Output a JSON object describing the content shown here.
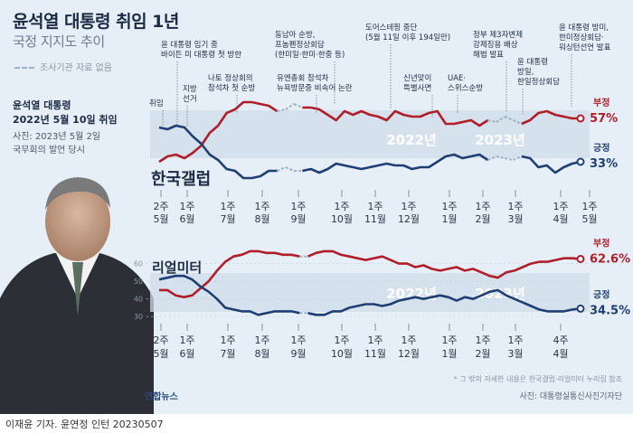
{
  "title": "윤석열 대통령 취임 1년",
  "subtitle": "국정 지지도 추이",
  "legend_dashed": "조사기관 자료 없음",
  "info": {
    "name": "윤석열 대통령",
    "date": "2022년 5월 10일 취임",
    "photo_line1": "사진: 2023년 5월 2일",
    "photo_line2": "국무회의 발언 당시"
  },
  "footnote": "* 그 밖의 자세한 내용은 한국갤럽·리얼미터 누리집 참조",
  "photo_credit": "사진: 대통령실통신사진기자단",
  "agency": "연합뉴스",
  "credit_line": "이재윤 기자. 윤연정 인턴  20230507",
  "colors": {
    "negative": "#b01e2a",
    "positive": "#1f3f74",
    "gap": "#9fb1c4",
    "band": "#cfdeeb"
  },
  "chart_data": [
    {
      "type": "line",
      "source": "한국갤럽",
      "year_labels": [
        "2022년",
        "2023년"
      ],
      "x_ticks": [
        {
          "week": "2주",
          "month": "5월"
        },
        {
          "week": "1주",
          "month": "6월"
        },
        {
          "week": "1주",
          "month": "7월"
        },
        {
          "week": "1주",
          "month": "8월"
        },
        {
          "week": "1주",
          "month": "9월"
        },
        {
          "week": "1주",
          "month": "10월"
        },
        {
          "week": "1주",
          "month": "11월"
        },
        {
          "week": "1주",
          "month": "12월"
        },
        {
          "week": "1주",
          "month": "1월"
        },
        {
          "week": "1주",
          "month": "2월"
        },
        {
          "week": "1주",
          "month": "3월"
        },
        {
          "week": "1주",
          "month": "4월"
        },
        {
          "week": "1주",
          "month": "5월"
        }
      ],
      "series": [
        {
          "name": "부정",
          "final_label": "57%",
          "values": [
            33,
            36,
            37,
            35,
            38,
            42,
            49,
            53,
            60,
            62,
            66,
            66,
            65,
            64,
            61,
            62,
            65,
            63,
            63,
            62,
            59,
            56,
            61,
            59,
            61,
            59,
            58,
            56,
            61,
            59,
            58,
            58,
            60,
            61,
            54,
            54,
            55,
            56,
            53,
            56,
            55,
            58,
            56,
            54,
            56,
            60,
            61,
            59,
            58,
            57,
            57
          ],
          "gaps": [
            [
              14,
              17
            ],
            [
              39,
              43
            ]
          ]
        },
        {
          "name": "긍정",
          "final_label": "33%",
          "values": [
            52,
            51,
            53,
            52,
            47,
            43,
            37,
            34,
            29,
            28,
            24,
            24,
            25,
            28,
            28,
            30,
            28,
            28,
            29,
            27,
            29,
            32,
            31,
            30,
            29,
            30,
            31,
            32,
            31,
            31,
            29,
            30,
            30,
            33,
            36,
            37,
            35,
            36,
            37,
            34,
            36,
            35,
            34,
            36,
            35,
            30,
            31,
            27,
            30,
            32,
            33
          ],
          "gaps": [
            [
              14,
              17
            ],
            [
              39,
              43
            ]
          ]
        }
      ],
      "annotations": [
        "취임",
        "지방 선거",
        "윤 대통령 임기 중 바이든 미 대통령 첫 방한",
        "나토 정상회의 참석차 첫 순방",
        "동남아 순방, 프놈펜정상회담 (한미일·한미·한중 등)",
        "유엔총회 참석차 뉴욕방문중 비속어 논란",
        "도어스테핑 중단 (5월 11일 이후 194일만)",
        "신년맞이 특별사면",
        "UAE· 스위스순방",
        "정부 제3자변제 강제징용 배상 해법 발표",
        "윤 대통령 방일, 한일정상회담",
        "윤 대통령 방미, 한미정상회담· 워싱턴선언 발표"
      ]
    },
    {
      "type": "line",
      "source": "리얼미터",
      "year_labels": [
        "2022년",
        "2023년"
      ],
      "y_ticks": [
        60,
        50,
        40,
        30
      ],
      "x_ticks": [
        {
          "week": "2주",
          "month": "5월"
        },
        {
          "week": "1주",
          "month": "6월"
        },
        {
          "week": "1주",
          "month": "7월"
        },
        {
          "week": "1주",
          "month": "8월"
        },
        {
          "week": "1주",
          "month": "9월"
        },
        {
          "week": "1주",
          "month": "10월"
        },
        {
          "week": "1주",
          "month": "11월"
        },
        {
          "week": "1주",
          "month": "12월"
        },
        {
          "week": "1주",
          "month": "1월"
        },
        {
          "week": "1주",
          "month": "2월"
        },
        {
          "week": "1주",
          "month": "3월"
        },
        {
          "week": "4주",
          "month": "4월"
        }
      ],
      "series": [
        {
          "name": "부정",
          "final_label": "62.6%",
          "values": [
            45,
            45,
            42,
            41,
            42,
            46,
            50,
            56,
            61,
            64,
            65,
            67,
            67,
            66,
            66,
            65,
            65,
            64,
            64,
            66,
            67,
            67,
            65,
            64,
            63,
            62,
            63,
            64,
            62,
            60,
            60,
            58,
            59,
            57,
            56,
            57,
            58,
            56,
            57,
            55,
            53,
            52,
            55,
            56,
            58,
            60,
            61,
            61,
            62,
            63,
            63,
            62.6
          ],
          "gaps": [
            [
              17,
              18
            ]
          ]
        },
        {
          "name": "긍정",
          "final_label": "34.5%",
          "values": [
            51,
            52,
            53,
            53,
            51,
            47,
            44,
            40,
            35,
            34,
            33,
            33,
            31,
            32,
            33,
            33,
            33,
            32,
            32,
            31,
            31,
            33,
            33,
            35,
            36,
            37,
            37,
            36,
            37,
            39,
            40,
            41,
            40,
            41,
            42,
            41,
            39,
            41,
            40,
            42,
            44,
            45,
            42,
            40,
            38,
            36,
            34,
            33,
            33,
            33,
            34,
            34.5
          ],
          "gaps": [
            [
              17,
              18
            ]
          ]
        }
      ]
    }
  ]
}
